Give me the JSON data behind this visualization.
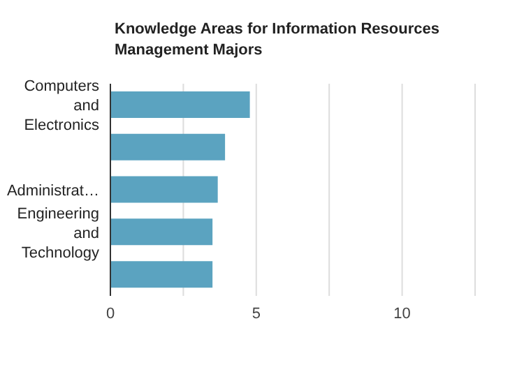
{
  "chart_data": {
    "type": "bar",
    "orientation": "horizontal",
    "title": "Knowledge Areas for Information Resources Management Majors",
    "categories": [
      "Computers and Electronics",
      null,
      "Administrat…",
      "Engineering and Technology",
      null
    ],
    "values": [
      4.78,
      3.93,
      3.68,
      3.5,
      3.5
    ],
    "color": "#5ba3c0",
    "xlim": [
      0,
      12.5
    ],
    "xticks": [
      0,
      {
        "value": 2.5,
        "label": null
      },
      5,
      {
        "value": 7.5,
        "label": null
      },
      10
    ],
    "grid": "x"
  }
}
